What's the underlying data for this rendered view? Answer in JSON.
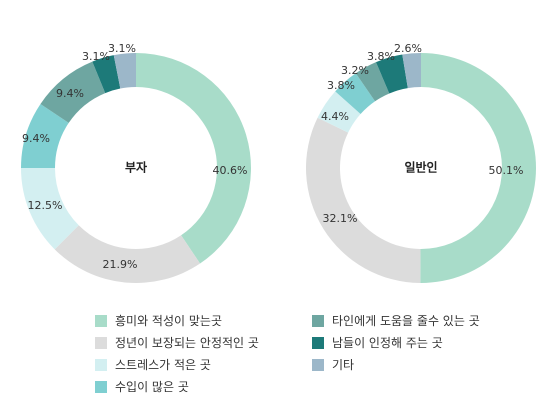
{
  "chart_data": [
    {
      "type": "pie",
      "center_label": "부자",
      "labels": [
        "40.6%",
        "21.9%",
        "12.5%",
        "9.4%",
        "9.4%",
        "3.1%",
        "3.1%"
      ],
      "values": [
        40.6,
        21.9,
        12.5,
        9.4,
        9.4,
        3.1,
        3.1
      ]
    },
    {
      "type": "pie",
      "center_label": "일반인",
      "labels": [
        "50.1%",
        "32.1%",
        "4.4%",
        "3.8%",
        "3.2%",
        "3.8%",
        "2.6%"
      ],
      "values": [
        50.1,
        32.1,
        4.4,
        3.8,
        3.2,
        3.8,
        2.6
      ]
    }
  ],
  "legend": [
    {
      "label": "흥미와 적성이 맞는곳",
      "color": "#a8dcc9"
    },
    {
      "label": "정년이 보장되는 안정적인 곳",
      "color": "#dcdcdc"
    },
    {
      "label": "스트레스가 적은 곳",
      "color": "#d3eff1"
    },
    {
      "label": "수입이 많은 곳",
      "color": "#7fcfd1"
    },
    {
      "label": "타인에게 도움을 줄수 있는 곳",
      "color": "#6ea6a1"
    },
    {
      "label": "남들이 인정해 주는 곳",
      "color": "#1d7a79"
    },
    {
      "label": "기타",
      "color": "#9cb7c9"
    }
  ]
}
